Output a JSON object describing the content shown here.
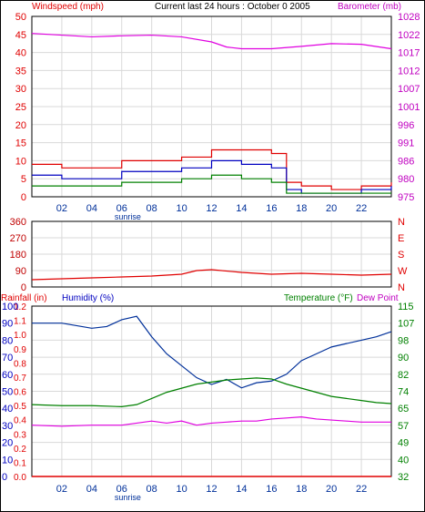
{
  "header": {
    "windspeed_label": "Windspeed (mph)",
    "title": "Current last 24 hours : October 0 2005",
    "barometer_label": "Barometer (mb)"
  },
  "lower_header": {
    "rainfall_label": "Rainfall (in)",
    "humidity_label": "Humidity (%)",
    "temperature_label": "Temperature (°F)",
    "dewpoint_label": "Dew Point"
  },
  "colors": {
    "frame": "#000000",
    "grid": "#d9d9d9",
    "red": "#e00000",
    "green": "#008000",
    "blue": "#0000c0",
    "magenta": "#e000e0",
    "navy": "#00309a",
    "darkred": "#c00000"
  },
  "chart_data": [
    {
      "type": "line",
      "title": "Current last 24 hours : October 0 2005",
      "x_ticks": [
        "02",
        "04",
        "06",
        "08",
        "10",
        "12",
        "14",
        "16",
        "18",
        "20",
        "22"
      ],
      "x_annotation": "sunrise",
      "left_axis": {
        "label": "Windspeed (mph)",
        "ticks": [
          "0",
          "5",
          "10",
          "15",
          "20",
          "25",
          "30",
          "35",
          "40",
          "45",
          "50"
        ],
        "ylim": [
          0,
          50
        ]
      },
      "right_axis": {
        "label": "Barometer (mb)",
        "ticks": [
          "975",
          "980",
          "986",
          "991",
          "996",
          "1001",
          "1007",
          "1012",
          "1017",
          "1022",
          "1028"
        ],
        "ylim": [
          975,
          1028
        ]
      },
      "grid": true,
      "series": [
        {
          "name": "Barometer (mb)",
          "axis": "right",
          "x": [
            0,
            2,
            4,
            6,
            8,
            10,
            12,
            13,
            14,
            16,
            18,
            20,
            22,
            24
          ],
          "values": [
            1023,
            1022.5,
            1022,
            1022.3,
            1022.5,
            1022,
            1020.5,
            1019,
            1018.5,
            1018.5,
            1019.2,
            1020,
            1019.8,
            1018.5
          ]
        },
        {
          "name": "Windspeed (mph)",
          "axis": "left",
          "style": "step",
          "x": [
            0,
            2,
            4,
            6,
            8,
            10,
            12,
            14,
            16,
            17,
            18,
            20,
            22,
            24
          ],
          "values": [
            9,
            8,
            8,
            10,
            10,
            11,
            13,
            13,
            12,
            4,
            3,
            2,
            3,
            4
          ]
        },
        {
          "axis": "left",
          "style": "step",
          "x": [
            0,
            2,
            4,
            6,
            8,
            10,
            12,
            14,
            16,
            17,
            18,
            20,
            22,
            24
          ],
          "values": [
            6,
            5,
            5,
            7,
            7,
            8,
            10,
            9,
            8,
            2,
            1,
            1,
            2,
            3
          ]
        },
        {
          "axis": "left",
          "style": "step",
          "x": [
            0,
            2,
            4,
            6,
            8,
            10,
            12,
            14,
            16,
            17,
            18,
            20,
            22,
            24
          ],
          "values": [
            3,
            3,
            3,
            4,
            4,
            5,
            6,
            5,
            4,
            1,
            1,
            1,
            1,
            1
          ]
        }
      ]
    },
    {
      "type": "scatter",
      "x_ticks": [],
      "left_axis": {
        "ticks": [
          "0",
          "90",
          "180",
          "270",
          "360"
        ],
        "ylim": [
          0,
          360
        ]
      },
      "right_axis": {
        "ticks": [
          "N",
          "E",
          "S",
          "W",
          "N"
        ]
      },
      "grid": true,
      "series": [
        {
          "axis": "left",
          "x": [
            0,
            2,
            4,
            6,
            8,
            10,
            11,
            12,
            14,
            16,
            18,
            20,
            22,
            24
          ],
          "values": [
            40,
            45,
            50,
            55,
            60,
            70,
            90,
            95,
            80,
            70,
            75,
            70,
            65,
            70
          ]
        }
      ]
    },
    {
      "type": "line",
      "x_ticks": [
        "02",
        "04",
        "06",
        "08",
        "10",
        "12",
        "14",
        "16",
        "18",
        "20",
        "22"
      ],
      "x_annotation": "sunrise",
      "left_axis_outer": {
        "label": "Rainfall (in)",
        "ticks": [
          "0.0",
          "0.1",
          "0.2",
          "0.3",
          "0.4",
          "0.5",
          "0.6",
          "0.7",
          "0.8",
          "0.9",
          "1.0",
          "1.1",
          "1.2"
        ],
        "ylim": [
          0,
          1.2
        ]
      },
      "left_axis_inner": {
        "label": "Humidity (%)",
        "ticks": [
          "0",
          "10",
          "20",
          "30",
          "40",
          "50",
          "60",
          "70",
          "80",
          "90",
          "100"
        ],
        "ylim": [
          0,
          100
        ]
      },
      "right_axis": {
        "label": "Temperature (°F)",
        "ticks": [
          "32",
          "40",
          "49",
          "57",
          "65",
          "74",
          "82",
          "90",
          "98",
          "107",
          "115"
        ],
        "ylim": [
          32,
          115
        ]
      },
      "right_label_2": "Dew Point",
      "grid": true,
      "series": [
        {
          "name": "Rainfall (in)",
          "axis": "left_outer",
          "x": [
            0,
            24
          ],
          "values": [
            0.0,
            0.0
          ]
        },
        {
          "name": "Humidity (%)",
          "axis": "left_inner",
          "x": [
            0,
            2,
            4,
            5,
            6,
            7,
            8,
            9,
            10,
            11,
            12,
            13,
            14,
            15,
            16,
            17,
            18,
            19,
            20,
            21,
            22,
            23,
            24
          ],
          "values": [
            90,
            90,
            87,
            88,
            92,
            94,
            82,
            72,
            65,
            58,
            54,
            57,
            52,
            55,
            56,
            60,
            68,
            72,
            76,
            78,
            80,
            82,
            85
          ]
        },
        {
          "name": "Temperature (°F)",
          "axis": "right",
          "x": [
            0,
            2,
            4,
            6,
            7,
            8,
            9,
            10,
            11,
            12,
            13,
            14,
            15,
            16,
            17,
            18,
            19,
            20,
            21,
            22,
            23,
            24
          ],
          "values": [
            67,
            66.5,
            66.5,
            66,
            67,
            70,
            73,
            75,
            77,
            78,
            79,
            79.5,
            80,
            79.5,
            77,
            75,
            73,
            71,
            70,
            69,
            68,
            67.5
          ]
        },
        {
          "name": "Dew Point",
          "axis": "right",
          "x": [
            0,
            2,
            4,
            6,
            7,
            8,
            9,
            10,
            11,
            12,
            13,
            14,
            15,
            16,
            17,
            18,
            19,
            20,
            21,
            22,
            23,
            24
          ],
          "values": [
            57,
            56.5,
            57,
            57,
            58,
            59,
            58,
            59,
            57,
            58,
            58.5,
            59,
            59,
            60,
            60.5,
            61,
            60,
            59.5,
            59,
            58.5,
            58.5,
            58.5
          ]
        }
      ]
    }
  ]
}
